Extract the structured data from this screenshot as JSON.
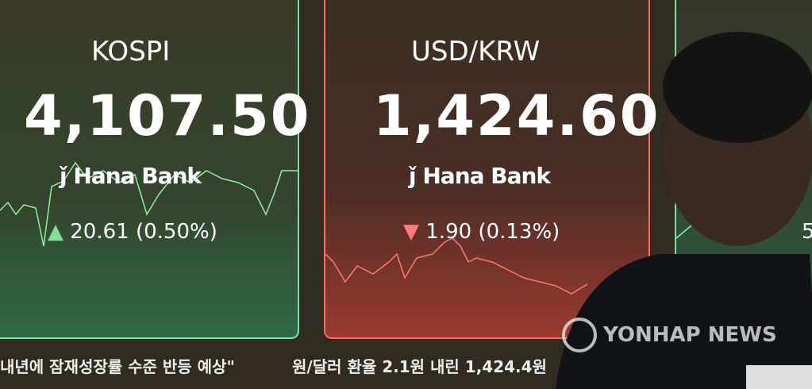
{
  "kospi": {
    "title": "KOSPI",
    "value": "4,107.50",
    "bank": "Hana Bank",
    "change": "20.61 (0.50%)",
    "direction": "up",
    "color": "#7fe09a"
  },
  "usdkrw": {
    "title": "USD/KRW",
    "value": "1,424.60",
    "bank": "Hana Bank",
    "change": "1.90 (0.13%)",
    "direction": "down",
    "color": "#ff6a6a"
  },
  "third_panel": {
    "partial_text": "5"
  },
  "ticker": {
    "left": "내년에 잠재성장률 수준 반등 예상\"",
    "right": "원/달러 환율 2.1원 내린 1,424.4원"
  },
  "watermark": "YONHAP NEWS"
}
